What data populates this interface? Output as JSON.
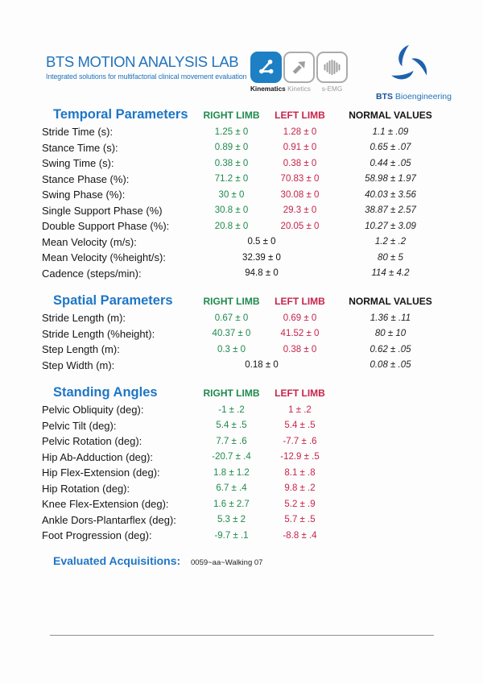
{
  "colors": {
    "blue": "#2273BC",
    "heading_blue": "#1E76C6",
    "green": "#208A4E",
    "red": "#C8244B",
    "module_blue": "#1D7FC4",
    "icon_gray": "#9e9e9e"
  },
  "header": {
    "title": "BTS MOTION ANALYSIS LAB",
    "tagline": "Integrated solutions for multifactorial clinical movement evaluation",
    "modules": [
      {
        "label": "Kinematics",
        "icon": "kinematics-icon",
        "active": true
      },
      {
        "label": "Kinetics",
        "icon": "kinetics-icon",
        "active": false
      },
      {
        "label": "s-EMG",
        "icon": "semg-icon",
        "active": false
      }
    ],
    "brand_bold": "BTS",
    "brand_rest": "Bioengineering",
    "logo_icon": "bts-swirl-logo"
  },
  "sections": [
    {
      "title": "Temporal Parameters",
      "columns": [
        "RIGHT LIMB",
        "LEFT LIMB",
        "NORMAL VALUES"
      ],
      "rows": [
        {
          "label": "Stride Time (s):",
          "right": "1.25 ± 0",
          "left": "1.28 ± 0",
          "normal": "1.1 ± .09"
        },
        {
          "label": "Stance Time (s):",
          "right": "0.89 ± 0",
          "left": "0.91 ± 0",
          "normal": "0.65 ± .07"
        },
        {
          "label": "Swing Time (s):",
          "right": "0.38 ± 0",
          "left": "0.38 ± 0",
          "normal": "0.44 ± .05"
        },
        {
          "label": "Stance Phase (%):",
          "right": "71.2 ± 0",
          "left": "70.83 ± 0",
          "normal": "58.98 ± 1.97"
        },
        {
          "label": "Swing Phase (%):",
          "right": "30 ± 0",
          "left": "30.08 ± 0",
          "normal": "40.03 ± 3.56"
        },
        {
          "label": "Single Support Phase (%)",
          "right": "30.8 ± 0",
          "left": "29.3 ± 0",
          "normal": "38.87 ± 2.57"
        },
        {
          "label": "Double Support Phase (%):",
          "right": "20.8 ± 0",
          "left": "20.05 ± 0",
          "normal": "10.27 ± 3.09"
        },
        {
          "label": "Mean Velocity (m/s):",
          "merged": "0.5 ± 0",
          "normal": "1.2 ± .2"
        },
        {
          "label": "Mean Velocity (%height/s):",
          "merged": "32.39 ± 0",
          "normal": "80 ± 5"
        },
        {
          "label": "Cadence (steps/min):",
          "merged": "94.8 ± 0",
          "normal": "114 ± 4.2"
        }
      ]
    },
    {
      "title": "Spatial Parameters",
      "columns": [
        "RIGHT LIMB",
        "LEFT LIMB",
        "NORMAL VALUES"
      ],
      "rows": [
        {
          "label": "Stride Length (m):",
          "right": "0.67 ± 0",
          "left": "0.69 ± 0",
          "normal": "1.36 ± .11"
        },
        {
          "label": "Stride Length (%height):",
          "right": "40.37 ± 0",
          "left": "41.52 ± 0",
          "normal": "80 ± 10"
        },
        {
          "label": "Step Length (m):",
          "right": "0.3 ± 0",
          "left": "0.38 ± 0",
          "normal": "0.62 ± .05"
        },
        {
          "label": "Step Width (m):",
          "merged": "0.18 ± 0",
          "normal": "0.08 ± .05"
        }
      ]
    },
    {
      "title": "Standing Angles",
      "columns": [
        "RIGHT LIMB",
        "LEFT LIMB"
      ],
      "rows": [
        {
          "label": "Pelvic Obliquity (deg):",
          "right": "-1 ± .2",
          "left": "1 ± .2"
        },
        {
          "label": "Pelvic Tilt (deg):",
          "right": "5.4 ± .5",
          "left": "5.4 ± .5"
        },
        {
          "label": "Pelvic Rotation (deg):",
          "right": "7.7 ± .6",
          "left": "-7.7 ± .6"
        },
        {
          "label": "Hip Ab-Adduction (deg):",
          "right": "-20.7 ± .4",
          "left": "-12.9 ± .5"
        },
        {
          "label": "Hip Flex-Extension (deg):",
          "right": "1.8 ± 1.2",
          "left": "8.1 ± .8"
        },
        {
          "label": "Hip Rotation (deg):",
          "right": "6.7 ± .4",
          "left": "9.8 ± .2"
        },
        {
          "label": "Knee Flex-Extension (deg):",
          "right": "1.6 ± 2.7",
          "left": "5.2 ± .9"
        },
        {
          "label": "Ankle Dors-Plantarflex (deg):",
          "right": "5.3 ± 2",
          "left": "5.7 ± .5"
        },
        {
          "label": "Foot Progression (deg):",
          "right": "-9.7 ± .1",
          "left": "-8.8 ± .4"
        }
      ]
    }
  ],
  "footer": {
    "label": "Evaluated Acquisitions:",
    "value": "0059~aa~Walking 07"
  }
}
